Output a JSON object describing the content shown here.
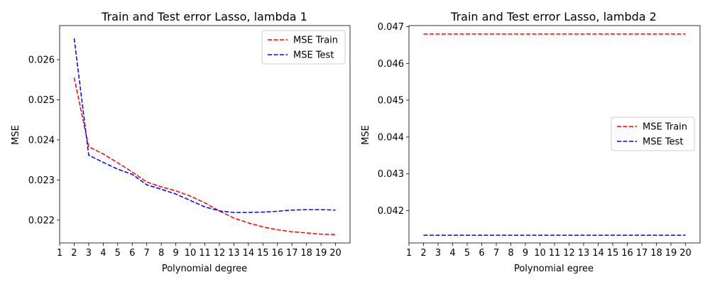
{
  "chart_data": [
    {
      "type": "line",
      "title": "Train and Test error Lasso, lambda 1",
      "xlabel": "Polynomial degree",
      "ylabel": "MSE",
      "xlim": [
        1,
        21
      ],
      "ylim": [
        0.02143,
        0.02685
      ],
      "xticks": [
        1,
        2,
        3,
        4,
        5,
        6,
        7,
        8,
        9,
        10,
        11,
        12,
        13,
        14,
        15,
        16,
        17,
        18,
        19,
        20
      ],
      "yticks": [
        0.022,
        0.023,
        0.024,
        0.025,
        0.026
      ],
      "ytick_labels": [
        "0.022",
        "0.023",
        "0.024",
        "0.025",
        "0.026"
      ],
      "legend_position": "top-right",
      "grid": false,
      "x": [
        2,
        3,
        4,
        5,
        6,
        7,
        8,
        9,
        10,
        11,
        12,
        13,
        14,
        15,
        16,
        17,
        18,
        19,
        20
      ],
      "series": [
        {
          "name": "MSE Train",
          "color": "#ff0000",
          "values": [
            0.02555,
            0.02383,
            0.02365,
            0.02343,
            0.0232,
            0.02295,
            0.02283,
            0.02273,
            0.0226,
            0.02243,
            0.02223,
            0.02205,
            0.02193,
            0.02183,
            0.02176,
            0.02171,
            0.02168,
            0.02165,
            0.02164
          ]
        },
        {
          "name": "MSE Test",
          "color": "#0000ff",
          "values": [
            0.02653,
            0.02362,
            0.02344,
            0.02327,
            0.02314,
            0.02288,
            0.02277,
            0.02265,
            0.02249,
            0.02233,
            0.02223,
            0.02219,
            0.02219,
            0.0222,
            0.02222,
            0.02225,
            0.02226,
            0.02226,
            0.02225
          ]
        }
      ]
    },
    {
      "type": "line",
      "title": "Train and Test error Lasso, lambda 2",
      "xlabel": "Polynomial egree",
      "ylabel": "MSE",
      "xlim": [
        1,
        21
      ],
      "ylim": [
        0.04112,
        0.04703
      ],
      "xticks": [
        1,
        2,
        3,
        4,
        5,
        6,
        7,
        8,
        9,
        10,
        11,
        12,
        13,
        14,
        15,
        16,
        17,
        18,
        19,
        20
      ],
      "yticks": [
        0.042,
        0.043,
        0.044,
        0.045,
        0.046,
        0.047
      ],
      "ytick_labels": [
        "0.042",
        "0.043",
        "0.044",
        "0.045",
        "0.046",
        "0.047"
      ],
      "legend_position": "center-right",
      "grid": false,
      "x": [
        2,
        3,
        4,
        5,
        6,
        7,
        8,
        9,
        10,
        11,
        12,
        13,
        14,
        15,
        16,
        17,
        18,
        19,
        20
      ],
      "series": [
        {
          "name": "MSE Train",
          "color": "#ff0000",
          "values": [
            0.0468,
            0.0468,
            0.0468,
            0.0468,
            0.0468,
            0.0468,
            0.0468,
            0.0468,
            0.0468,
            0.0468,
            0.0468,
            0.0468,
            0.0468,
            0.0468,
            0.0468,
            0.0468,
            0.0468,
            0.0468,
            0.0468
          ]
        },
        {
          "name": "MSE Test",
          "color": "#0000ff",
          "values": [
            0.04133,
            0.04133,
            0.04133,
            0.04133,
            0.04133,
            0.04133,
            0.04133,
            0.04133,
            0.04133,
            0.04133,
            0.04133,
            0.04133,
            0.04133,
            0.04133,
            0.04133,
            0.04133,
            0.04133,
            0.04133,
            0.04133
          ]
        }
      ]
    }
  ]
}
